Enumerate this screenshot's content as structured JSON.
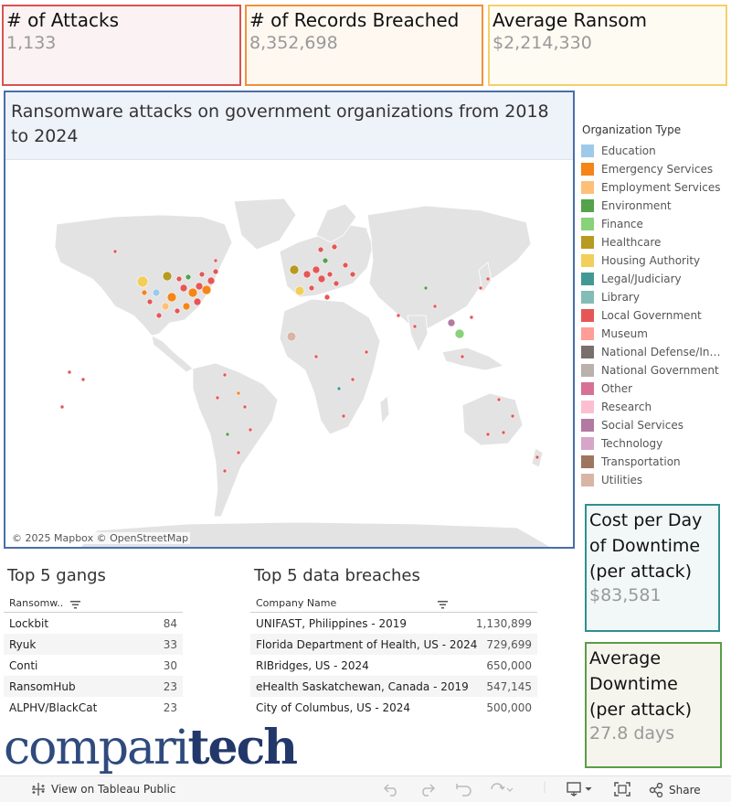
{
  "kpis": {
    "attacks": {
      "label": "# of Attacks",
      "value": "1,133"
    },
    "records": {
      "label": "# of Records Breached",
      "value": "8,352,698"
    },
    "ransom": {
      "label": "Average Ransom",
      "value": "$2,214,330"
    },
    "cost_per_day": {
      "label": "Cost per Day of Downtime (per attack)",
      "value": "$83,581"
    },
    "downtime": {
      "label": "Average Downtime (per attack)",
      "value": "27.8 days"
    }
  },
  "map": {
    "title": "Ransomware attacks on government organizations from 2018 to 2024",
    "attribution": "© 2025 Mapbox  © OpenStreetMap"
  },
  "legend": {
    "title": "Organization Type",
    "items": [
      {
        "label": "Education",
        "color": "#9ecae9"
      },
      {
        "label": "Emergency Services",
        "color": "#f58518"
      },
      {
        "label": "Employment Services",
        "color": "#ffbf79"
      },
      {
        "label": "Environment",
        "color": "#54a24b"
      },
      {
        "label": "Finance",
        "color": "#88d27a"
      },
      {
        "label": "Healthcare",
        "color": "#b79a20"
      },
      {
        "label": "Housing Authority",
        "color": "#f2cf5b"
      },
      {
        "label": "Legal/Judiciary",
        "color": "#439894"
      },
      {
        "label": "Library",
        "color": "#83bcb6"
      },
      {
        "label": "Local Government",
        "color": "#e45756"
      },
      {
        "label": "Museum",
        "color": "#ff9d98"
      },
      {
        "label": "National Defense/Int…",
        "color": "#79706e"
      },
      {
        "label": "National Government",
        "color": "#bab0ac"
      },
      {
        "label": "Other",
        "color": "#d67195"
      },
      {
        "label": "Research",
        "color": "#fcbfd2"
      },
      {
        "label": "Social Services",
        "color": "#b279a2"
      },
      {
        "label": "Technology",
        "color": "#d6a5c9"
      },
      {
        "label": "Transportation",
        "color": "#9e765f"
      },
      {
        "label": "Utilities",
        "color": "#d8b5a5"
      }
    ]
  },
  "gangs": {
    "title": "Top 5 gangs",
    "column": "Ransomw..",
    "rows": [
      {
        "name": "Lockbit",
        "value": "84"
      },
      {
        "name": "Ryuk",
        "value": "33"
      },
      {
        "name": "Conti",
        "value": "30"
      },
      {
        "name": "RansomHub",
        "value": "23"
      },
      {
        "name": "ALPHV/BlackCat",
        "value": "23"
      }
    ]
  },
  "breaches": {
    "title": "Top 5 data breaches",
    "column": "Company Name",
    "rows": [
      {
        "name": "UNIFAST, Philippines - 2019",
        "value": "1,130,899"
      },
      {
        "name": "Florida Department of Health, US - 2024",
        "value": "729,699"
      },
      {
        "name": "RIBridges, US - 2024",
        "value": "650,000"
      },
      {
        "name": "eHealth Saskatchewan, Canada - 2019",
        "value": "547,145"
      },
      {
        "name": "City of Columbus, US - 2024",
        "value": "500,000"
      }
    ]
  },
  "logo": {
    "light": "compari",
    "bold": "tech"
  },
  "toolbar": {
    "view_label": "View on Tableau Public",
    "share_label": "Share",
    "icons": [
      "undo-icon",
      "redo-icon",
      "revert-icon",
      "refresh-icon",
      "download-icon",
      "fullscreen-icon",
      "share-icon"
    ]
  }
}
